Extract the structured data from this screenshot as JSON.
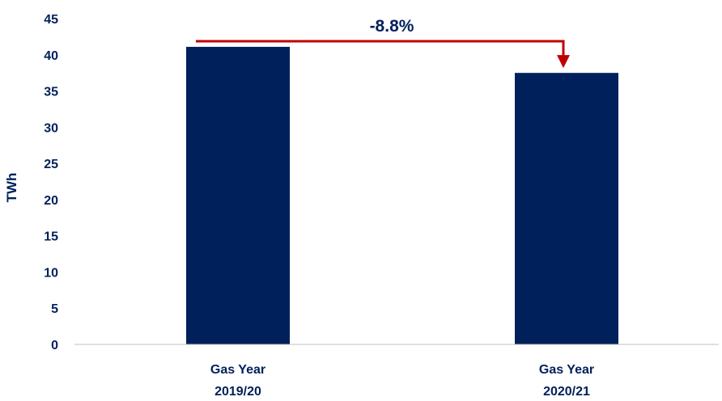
{
  "chart_data": {
    "type": "bar",
    "categories": [
      "Gas Year 2019/20",
      "Gas Year 2020/21"
    ],
    "category_lines": [
      [
        "Gas Year",
        "2019/20"
      ],
      [
        "Gas Year",
        "2020/21"
      ]
    ],
    "values": [
      41.1,
      37.5
    ],
    "ylabel": "TWh",
    "xlabel": "",
    "ylim": [
      0,
      45
    ],
    "yticks": [
      0,
      5,
      10,
      15,
      20,
      25,
      30,
      35,
      40,
      45
    ],
    "grid": false,
    "annotation": {
      "text": "-8.8%",
      "from_category": 0,
      "to_category": 1
    },
    "colors": {
      "bar": "#00205b",
      "text": "#00205b",
      "annotation": "#c00000",
      "axis": "#bfbfbf"
    }
  }
}
